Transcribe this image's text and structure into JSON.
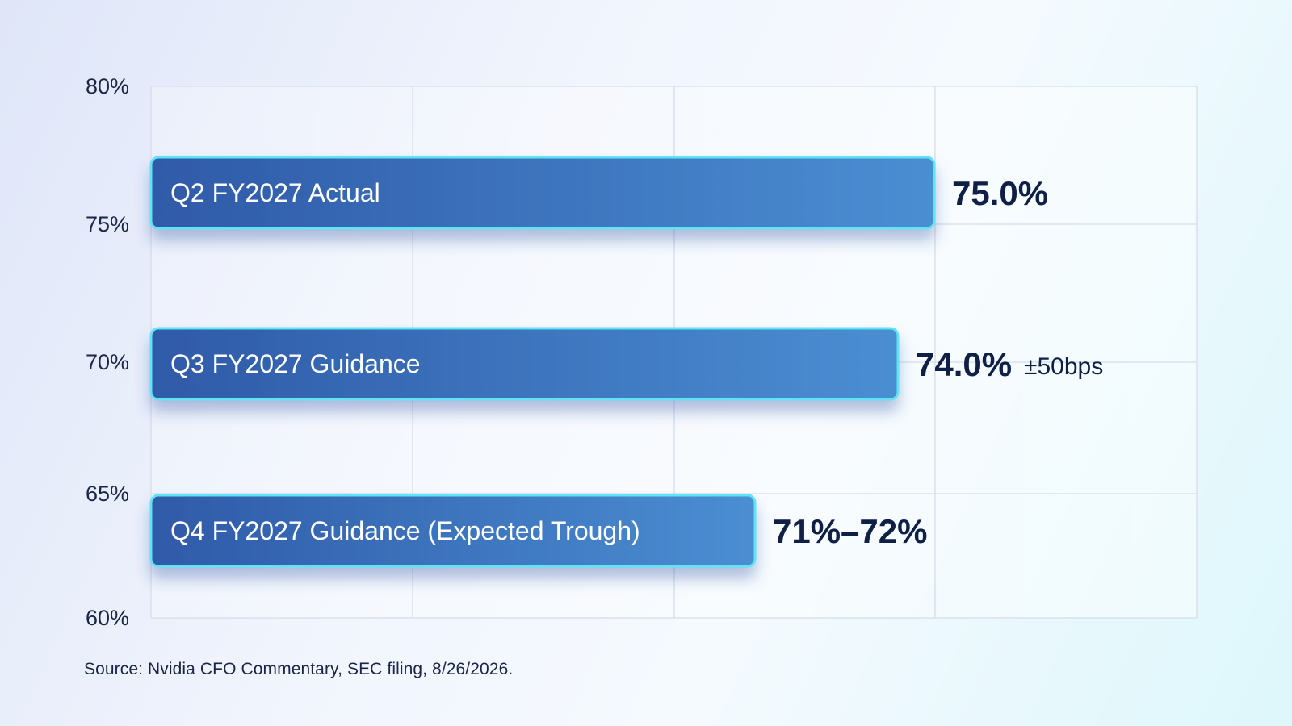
{
  "chart_data": {
    "type": "bar",
    "orientation": "horizontal",
    "title": "",
    "xlabel": "",
    "ylabel": "",
    "y_ticks": [
      "80%",
      "75%",
      "70%",
      "65%",
      "60%"
    ],
    "grid": true,
    "bars": [
      {
        "label": "Q2 FY2027 Actual",
        "value": 75.0,
        "value_label": "75.0%",
        "value_suffix": ""
      },
      {
        "label": "Q3 FY2027 Guidance",
        "value": 74.0,
        "value_label": "74.0%",
        "value_suffix": "±50bps"
      },
      {
        "label": "Q4 FY2027 Guidance (Expected Trough)",
        "value": 71.5,
        "value_label": "71%–72%",
        "value_suffix": ""
      }
    ],
    "colors": {
      "bar_start": "#2f5aa8",
      "bar_end": "#4b8ed2",
      "bar_outline": "#5fe3f5",
      "value_text": "#0f1f45",
      "grid": "#d6dcec"
    }
  },
  "source_note": "Source: Nvidia CFO Commentary, SEC filing, 8/26/2026."
}
